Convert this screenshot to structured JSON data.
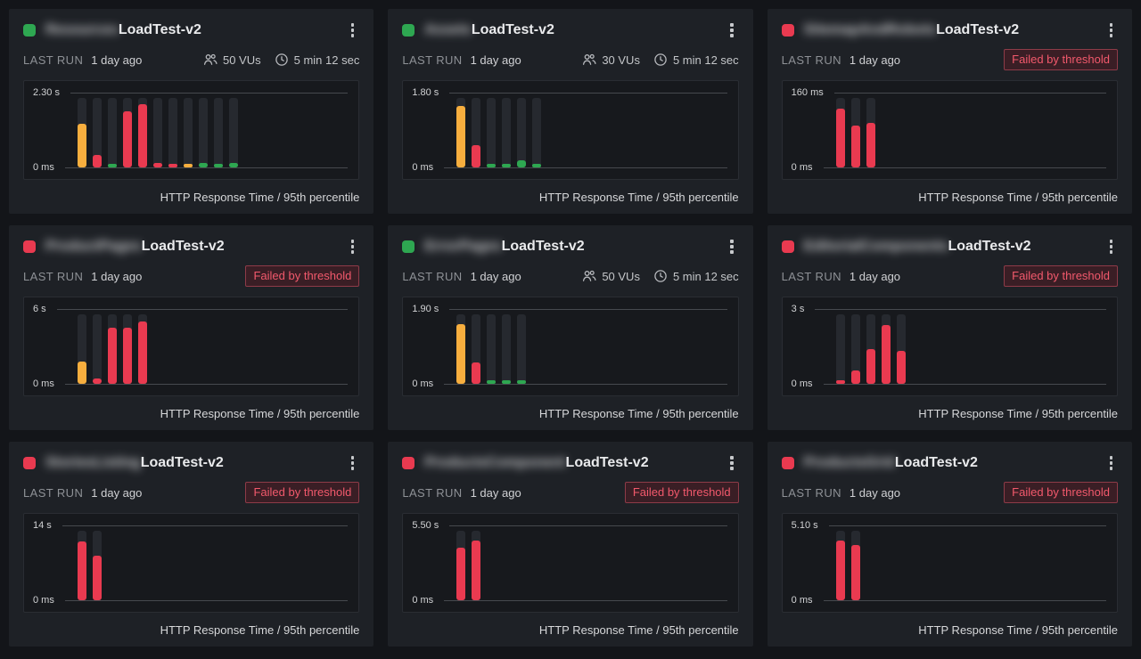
{
  "page": {
    "background": "#131519"
  },
  "colors": {
    "green": "#2EA751",
    "red": "#E93A50",
    "yellow": "#F7AE3E",
    "track": "#26292F",
    "badge_text": "#F2596C",
    "badge_bg": "#3A1E25",
    "badge_border": "#8E3B48",
    "card_bg": "#1E2126",
    "panel_bg": "#17191D"
  },
  "labels": {
    "last_run": "LAST RUN",
    "caption": "HTTP Response Time / 95th percentile",
    "failed_badge": "Failed by threshold",
    "kebab_icon": "more-options",
    "users_icon": "virtual-users",
    "clock_icon": "duration"
  },
  "cards": [
    {
      "name_redacted": "Resources",
      "title_suffix": "LoadTest-v2",
      "status": "passed",
      "failed": false,
      "last_run": "1 day ago",
      "vus": "50 VUs",
      "duration": "5 min 12 sec",
      "chart": {
        "type": "bar",
        "metric": "HTTP Response Time / 95th percentile",
        "ymax_label": "2.30 s",
        "ymin_label": "0 ms",
        "bars": [
          {
            "color": "yellow",
            "frac": 0.58,
            "approx_value": "1.33 s"
          },
          {
            "color": "red",
            "frac": 0.17,
            "approx_value": "0.39 s"
          },
          {
            "color": "green",
            "frac": 0.05,
            "approx_value": "0.12 s"
          },
          {
            "color": "red",
            "frac": 0.75,
            "approx_value": "1.73 s"
          },
          {
            "color": "red",
            "frac": 0.85,
            "approx_value": "1.96 s"
          },
          {
            "color": "red",
            "frac": 0.06,
            "approx_value": "0.14 s"
          },
          {
            "color": "red",
            "frac": 0.05,
            "approx_value": "0.12 s"
          },
          {
            "color": "yellow",
            "frac": 0.05,
            "approx_value": "0.12 s"
          },
          {
            "color": "green",
            "frac": 0.06,
            "approx_value": "0.14 s"
          },
          {
            "color": "green",
            "frac": 0.05,
            "approx_value": "0.12 s"
          },
          {
            "color": "green",
            "frac": 0.06,
            "approx_value": "0.14 s"
          }
        ]
      }
    },
    {
      "name_redacted": "Assets",
      "title_suffix": "LoadTest-v2",
      "status": "passed",
      "failed": false,
      "last_run": "1 day ago",
      "vus": "30 VUs",
      "duration": "5 min 12 sec",
      "chart": {
        "type": "bar",
        "metric": "HTTP Response Time / 95th percentile",
        "ymax_label": "1.80 s",
        "ymin_label": "0 ms",
        "bars": [
          {
            "color": "yellow",
            "frac": 0.82,
            "approx_value": "1.48 s"
          },
          {
            "color": "red",
            "frac": 0.3,
            "approx_value": "0.54 s"
          },
          {
            "color": "green",
            "frac": 0.05,
            "approx_value": "0.09 s"
          },
          {
            "color": "green",
            "frac": 0.05,
            "approx_value": "0.09 s"
          },
          {
            "color": "green",
            "frac": 0.09,
            "approx_value": "0.16 s"
          },
          {
            "color": "green",
            "frac": 0.05,
            "approx_value": "0.09 s"
          }
        ]
      }
    },
    {
      "name_redacted": "SitemapAndRobots",
      "title_suffix": "LoadTest-v2",
      "status": "failed",
      "failed": true,
      "last_run": "1 day ago",
      "vus": "",
      "duration": "",
      "chart": {
        "type": "bar",
        "metric": "HTTP Response Time / 95th percentile",
        "ymax_label": "160 ms",
        "ymin_label": "0 ms",
        "bars": [
          {
            "color": "red",
            "frac": 0.78,
            "approx_value": "125 ms"
          },
          {
            "color": "red",
            "frac": 0.56,
            "approx_value": "90 ms"
          },
          {
            "color": "red",
            "frac": 0.6,
            "approx_value": "96 ms"
          }
        ]
      }
    },
    {
      "name_redacted": "ProductPages",
      "title_suffix": "LoadTest-v2",
      "status": "failed",
      "failed": true,
      "last_run": "1 day ago",
      "vus": "",
      "duration": "",
      "chart": {
        "type": "bar",
        "metric": "HTTP Response Time / 95th percentile",
        "ymax_label": "6 s",
        "ymin_label": "0 ms",
        "bars": [
          {
            "color": "yellow",
            "frac": 0.3,
            "approx_value": "1.8 s"
          },
          {
            "color": "red",
            "frac": 0.07,
            "approx_value": "0.4 s"
          },
          {
            "color": "red",
            "frac": 0.75,
            "approx_value": "4.5 s"
          },
          {
            "color": "red",
            "frac": 0.75,
            "approx_value": "4.5 s"
          },
          {
            "color": "red",
            "frac": 0.83,
            "approx_value": "5.0 s"
          }
        ]
      }
    },
    {
      "name_redacted": "ErrorPages",
      "title_suffix": "LoadTest-v2",
      "status": "passed",
      "failed": false,
      "last_run": "1 day ago",
      "vus": "50 VUs",
      "duration": "5 min 12 sec",
      "chart": {
        "type": "bar",
        "metric": "HTTP Response Time / 95th percentile",
        "ymax_label": "1.90 s",
        "ymin_label": "0 ms",
        "bars": [
          {
            "color": "yellow",
            "frac": 0.8,
            "approx_value": "1.52 s"
          },
          {
            "color": "red",
            "frac": 0.29,
            "approx_value": "0.55 s"
          },
          {
            "color": "green",
            "frac": 0.04,
            "approx_value": "0.08 s"
          },
          {
            "color": "green",
            "frac": 0.04,
            "approx_value": "0.08 s"
          },
          {
            "color": "green",
            "frac": 0.04,
            "approx_value": "0.08 s"
          }
        ]
      }
    },
    {
      "name_redacted": "EditorialComponents",
      "title_suffix": "LoadTest-v2",
      "status": "failed",
      "failed": true,
      "last_run": "1 day ago",
      "vus": "",
      "duration": "",
      "chart": {
        "type": "bar",
        "metric": "HTTP Response Time / 95th percentile",
        "ymax_label": "3 s",
        "ymin_label": "0 ms",
        "bars": [
          {
            "color": "red",
            "frac": 0.03,
            "approx_value": "0.09 s"
          },
          {
            "color": "red",
            "frac": 0.18,
            "approx_value": "0.54 s"
          },
          {
            "color": "red",
            "frac": 0.46,
            "approx_value": "1.38 s"
          },
          {
            "color": "red",
            "frac": 0.79,
            "approx_value": "2.37 s"
          },
          {
            "color": "red",
            "frac": 0.44,
            "approx_value": "1.32 s"
          }
        ]
      }
    },
    {
      "name_redacted": "StoriesListing",
      "title_suffix": "LoadTest-v2",
      "status": "failed",
      "failed": true,
      "last_run": "1 day ago",
      "vus": "",
      "duration": "",
      "chart": {
        "type": "bar",
        "metric": "HTTP Response Time / 95th percentile",
        "ymax_label": "14 s",
        "ymin_label": "0 ms",
        "bars": [
          {
            "color": "red",
            "frac": 0.79,
            "approx_value": "11.1 s"
          },
          {
            "color": "red",
            "frac": 0.59,
            "approx_value": "8.3 s"
          }
        ]
      }
    },
    {
      "name_redacted": "ProductsComponent",
      "title_suffix": "LoadTest-v2",
      "status": "failed",
      "failed": true,
      "last_run": "1 day ago",
      "vus": "",
      "duration": "",
      "chart": {
        "type": "bar",
        "metric": "HTTP Response Time / 95th percentile",
        "ymax_label": "5.50 s",
        "ymin_label": "0 ms",
        "bars": [
          {
            "color": "red",
            "frac": 0.7,
            "approx_value": "3.85 s"
          },
          {
            "color": "red",
            "frac": 0.8,
            "approx_value": "4.40 s"
          }
        ]
      }
    },
    {
      "name_redacted": "ProductsGrid",
      "title_suffix": "LoadTest-v2",
      "status": "failed",
      "failed": true,
      "last_run": "1 day ago",
      "vus": "",
      "duration": "",
      "chart": {
        "type": "bar",
        "metric": "HTTP Response Time / 95th percentile",
        "ymax_label": "5.10 s",
        "ymin_label": "0 ms",
        "bars": [
          {
            "color": "red",
            "frac": 0.8,
            "approx_value": "4.1 s"
          },
          {
            "color": "red",
            "frac": 0.74,
            "approx_value": "3.8 s"
          }
        ]
      }
    }
  ]
}
